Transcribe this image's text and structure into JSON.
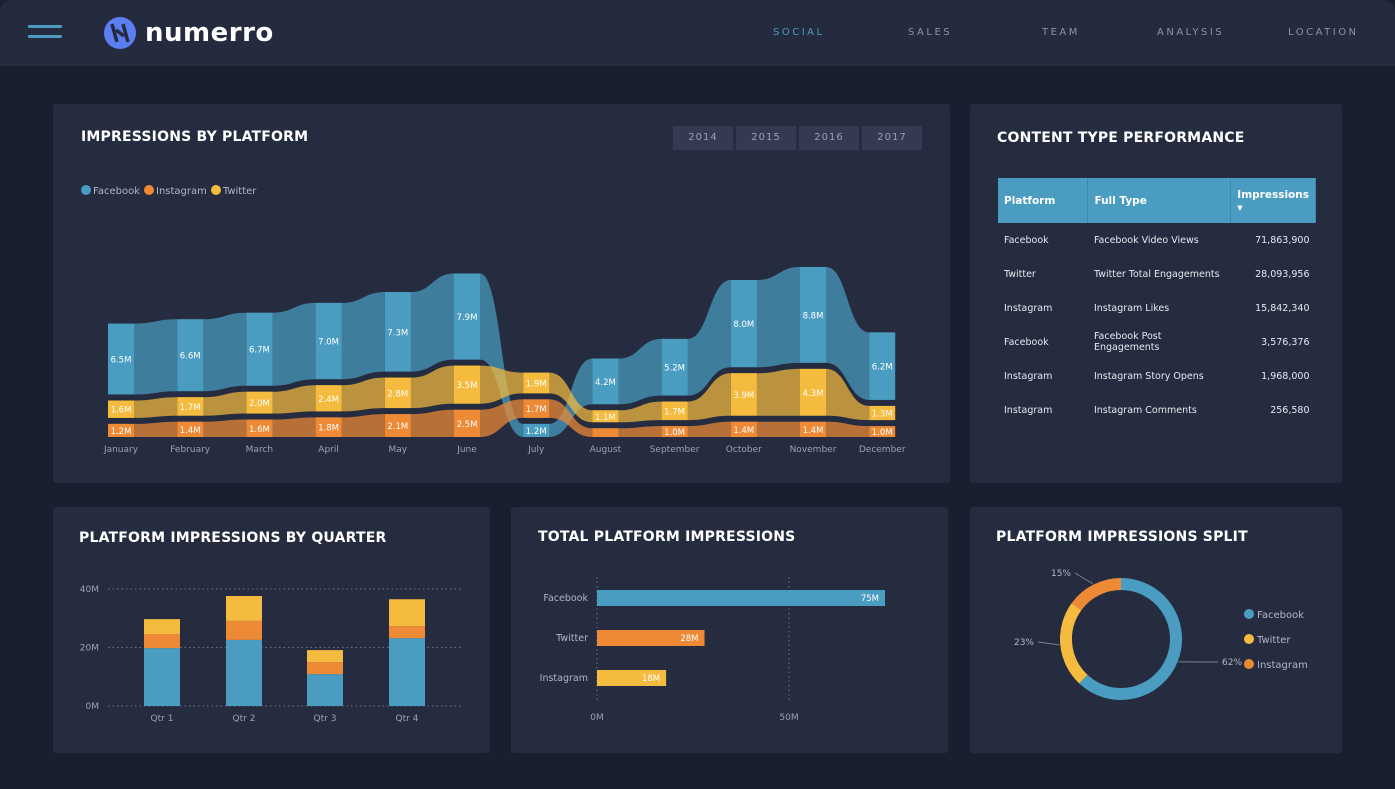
{
  "header": {
    "brand": "numerro",
    "nav": [
      "SOCIAL",
      "SALES",
      "TEAM",
      "ANALYSIS",
      "LOCATION"
    ],
    "active": "SOCIAL"
  },
  "colors": {
    "facebook": "#4a9cc0",
    "instagram": "#ee8a35",
    "twitter": "#f5bb3e"
  },
  "impressions_by_platform": {
    "title": "IMPRESSIONS BY PLATFORM",
    "years": [
      "2014",
      "2015",
      "2016",
      "2017"
    ],
    "legend": [
      "Facebook",
      "Instagram",
      "Twitter"
    ],
    "chart_data": {
      "type": "area",
      "months": [
        "January",
        "February",
        "March",
        "April",
        "May",
        "June",
        "July",
        "August",
        "September",
        "October",
        "November",
        "December"
      ],
      "series": [
        {
          "name": "Facebook",
          "values": [
            6.5,
            6.6,
            6.7,
            7.0,
            7.3,
            7.9,
            1.2,
            4.2,
            5.2,
            8.0,
            8.8,
            6.2
          ],
          "labels": [
            "6.5M",
            "6.6M",
            "6.7M",
            "7.0M",
            "7.3M",
            "7.9M",
            "1.2M",
            "4.2M",
            "5.2M",
            "8.0M",
            "8.8M",
            "6.2M"
          ]
        },
        {
          "name": "Twitter",
          "values": [
            1.6,
            1.7,
            2.0,
            2.4,
            2.8,
            3.5,
            1.9,
            1.1,
            1.7,
            3.9,
            4.3,
            1.3
          ],
          "labels": [
            "1.6M",
            "1.7M",
            "2.0M",
            "2.4M",
            "2.8M",
            "3.5M",
            "1.9M",
            "1.1M",
            "1.7M",
            "3.9M",
            "4.3M",
            "1.3M"
          ]
        },
        {
          "name": "Instagram",
          "values": [
            1.2,
            1.4,
            1.6,
            1.8,
            2.1,
            2.5,
            1.7,
            0.8,
            1.0,
            1.4,
            1.4,
            1.0
          ],
          "labels": [
            "1.2M",
            "1.4M",
            "1.6M",
            "1.8M",
            "2.1M",
            "2.5M",
            "1.7M",
            "",
            "1.0M",
            "1.4M",
            "1.4M",
            "1.0M"
          ]
        }
      ]
    }
  },
  "content_type": {
    "title": "CONTENT TYPE PERFORMANCE",
    "columns": [
      "Platform",
      "Full Type",
      "Impressions"
    ],
    "rows": [
      [
        "Facebook",
        "Facebook Video Views",
        "71,863,900"
      ],
      [
        "Twitter",
        "Twitter Total Engagements",
        "28,093,956"
      ],
      [
        "Instagram",
        "Instagram Likes",
        "15,842,340"
      ],
      [
        "Facebook",
        "Facebook Post Engagements",
        "3,576,376"
      ],
      [
        "Instagram",
        "Instagram Story Opens",
        "1,968,000"
      ],
      [
        "Instagram",
        "Instagram Comments",
        "256,580"
      ]
    ]
  },
  "by_quarter": {
    "title": "PLATFORM IMPRESSIONS BY QUARTER",
    "chart_data": {
      "type": "bar",
      "stacked": true,
      "categories": [
        "Qtr 1",
        "Qtr 2",
        "Qtr 3",
        "Qtr 4"
      ],
      "yticks": [
        "0M",
        "20M",
        "40M"
      ],
      "ylim": [
        0,
        40
      ],
      "series": [
        {
          "name": "Facebook",
          "values": [
            19.8,
            22.6,
            10.9,
            23.2
          ]
        },
        {
          "name": "Instagram",
          "values": [
            4.8,
            6.5,
            4.1,
            4.1
          ]
        },
        {
          "name": "Twitter",
          "values": [
            5.1,
            8.5,
            4.1,
            9.2
          ]
        }
      ]
    }
  },
  "total": {
    "title": "TOTAL PLATFORM IMPRESSIONS",
    "chart_data": {
      "type": "bar",
      "orientation": "horizontal",
      "categories": [
        "Facebook",
        "Twitter",
        "Instagram"
      ],
      "values": [
        75,
        28,
        18
      ],
      "labels": [
        "75M",
        "28M",
        "18M"
      ],
      "xticks": [
        "0M",
        "50M"
      ],
      "xlim": [
        0,
        75
      ]
    }
  },
  "split": {
    "title": "PLATFORM IMPRESSIONS SPLIT",
    "chart_data": {
      "type": "pie",
      "donut": true,
      "categories": [
        "Facebook",
        "Twitter",
        "Instagram"
      ],
      "values": [
        62,
        23,
        15
      ],
      "labels": [
        "62%",
        "23%",
        "15%"
      ]
    },
    "legend": [
      "Facebook",
      "Twitter",
      "Instagram"
    ]
  }
}
